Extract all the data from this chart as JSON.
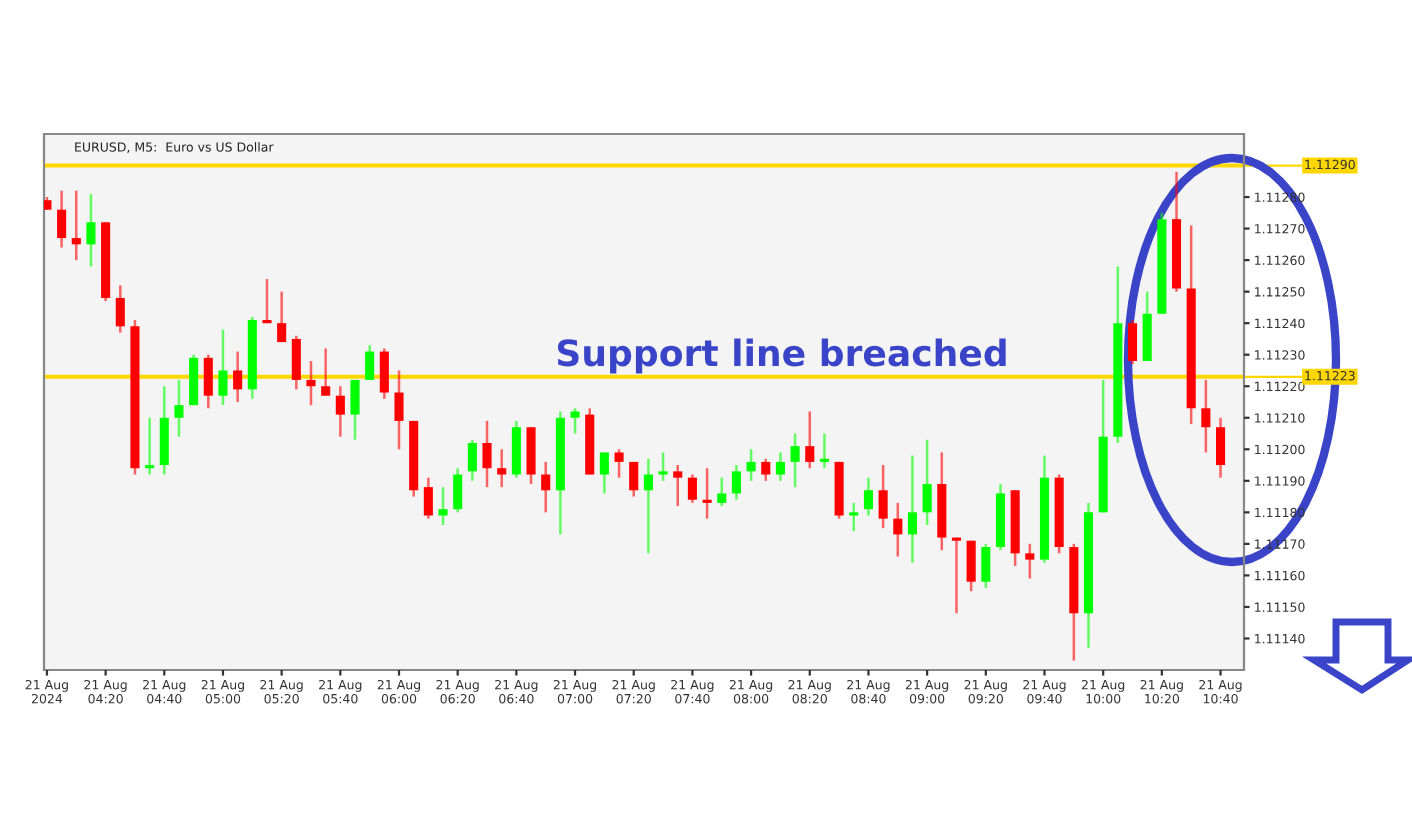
{
  "chart_data": {
    "type": "candlestick",
    "title": "EURUSD, M5:  Euro vs US Dollar",
    "annotations": [
      "Support line breached"
    ],
    "x": [
      "2024-08-21T04:00",
      "2024-08-21T04:05",
      "2024-08-21T04:10",
      "2024-08-21T04:15",
      "2024-08-21T04:20",
      "2024-08-21T04:25",
      "2024-08-21T04:30",
      "2024-08-21T04:35",
      "2024-08-21T04:40",
      "2024-08-21T04:45",
      "2024-08-21T04:50",
      "2024-08-21T04:55",
      "2024-08-21T05:00",
      "2024-08-21T05:05",
      "2024-08-21T05:10",
      "2024-08-21T05:15",
      "2024-08-21T05:20",
      "2024-08-21T05:25",
      "2024-08-21T05:30",
      "2024-08-21T05:35",
      "2024-08-21T05:40",
      "2024-08-21T05:45",
      "2024-08-21T05:50",
      "2024-08-21T05:55",
      "2024-08-21T06:00",
      "2024-08-21T06:05",
      "2024-08-21T06:10",
      "2024-08-21T06:15",
      "2024-08-21T06:20",
      "2024-08-21T06:25",
      "2024-08-21T06:30",
      "2024-08-21T06:35",
      "2024-08-21T06:40",
      "2024-08-21T06:45",
      "2024-08-21T06:50",
      "2024-08-21T06:55",
      "2024-08-21T07:00",
      "2024-08-21T07:05",
      "2024-08-21T07:10",
      "2024-08-21T07:15",
      "2024-08-21T07:20",
      "2024-08-21T07:25",
      "2024-08-21T07:30",
      "2024-08-21T07:35",
      "2024-08-21T07:40",
      "2024-08-21T07:45",
      "2024-08-21T07:50",
      "2024-08-21T07:55",
      "2024-08-21T08:00",
      "2024-08-21T08:05",
      "2024-08-21T08:10",
      "2024-08-21T08:15",
      "2024-08-21T08:20",
      "2024-08-21T08:25",
      "2024-08-21T08:30",
      "2024-08-21T08:35",
      "2024-08-21T08:40",
      "2024-08-21T08:45",
      "2024-08-21T08:50",
      "2024-08-21T08:55",
      "2024-08-21T09:00",
      "2024-08-21T09:05",
      "2024-08-21T09:10",
      "2024-08-21T09:15",
      "2024-08-21T09:20",
      "2024-08-21T09:25",
      "2024-08-21T09:30",
      "2024-08-21T09:35",
      "2024-08-21T09:40",
      "2024-08-21T09:45",
      "2024-08-21T09:50",
      "2024-08-21T09:55",
      "2024-08-21T10:00",
      "2024-08-21T10:05",
      "2024-08-21T10:10",
      "2024-08-21T10:15",
      "2024-08-21T10:20",
      "2024-08-21T10:25",
      "2024-08-21T10:30",
      "2024-08-21T10:35",
      "2024-08-21T10:40"
    ],
    "ohlc": [
      [
        1.11279,
        1.1128,
        1.11276,
        1.11276
      ],
      [
        1.11276,
        1.11282,
        1.11264,
        1.11267
      ],
      [
        1.11267,
        1.11282,
        1.1126,
        1.11265
      ],
      [
        1.11265,
        1.11281,
        1.11258,
        1.11272
      ],
      [
        1.11272,
        1.11272,
        1.11247,
        1.11248
      ],
      [
        1.11248,
        1.11252,
        1.11237,
        1.11239
      ],
      [
        1.11239,
        1.11241,
        1.11192,
        1.11194
      ],
      [
        1.11194,
        1.1121,
        1.11192,
        1.11195
      ],
      [
        1.11195,
        1.1122,
        1.11192,
        1.1121
      ],
      [
        1.1121,
        1.11222,
        1.11204,
        1.11214
      ],
      [
        1.11214,
        1.1123,
        1.11214,
        1.11229
      ],
      [
        1.11229,
        1.1123,
        1.11213,
        1.11217
      ],
      [
        1.11217,
        1.11238,
        1.11214,
        1.11225
      ],
      [
        1.11225,
        1.11231,
        1.11215,
        1.11219
      ],
      [
        1.11219,
        1.11242,
        1.11216,
        1.11241
      ],
      [
        1.11241,
        1.11254,
        1.1124,
        1.1124
      ],
      [
        1.1124,
        1.1125,
        1.11234,
        1.11234
      ],
      [
        1.11235,
        1.11236,
        1.11219,
        1.11222
      ],
      [
        1.11222,
        1.11228,
        1.11214,
        1.1122
      ],
      [
        1.1122,
        1.11232,
        1.11217,
        1.11217
      ],
      [
        1.11217,
        1.1122,
        1.11204,
        1.11211
      ],
      [
        1.11211,
        1.11222,
        1.11203,
        1.11222
      ],
      [
        1.11222,
        1.11233,
        1.11222,
        1.11231
      ],
      [
        1.11231,
        1.11232,
        1.11216,
        1.11218
      ],
      [
        1.11218,
        1.11225,
        1.112,
        1.11209
      ],
      [
        1.11209,
        1.11209,
        1.11185,
        1.11187
      ],
      [
        1.11188,
        1.11191,
        1.11178,
        1.11179
      ],
      [
        1.11179,
        1.11188,
        1.11176,
        1.11181
      ],
      [
        1.11181,
        1.11194,
        1.1118,
        1.11192
      ],
      [
        1.11193,
        1.11203,
        1.1119,
        1.11202
      ],
      [
        1.11202,
        1.11209,
        1.11188,
        1.11194
      ],
      [
        1.11194,
        1.112,
        1.11188,
        1.11192
      ],
      [
        1.11192,
        1.11209,
        1.11191,
        1.11207
      ],
      [
        1.11207,
        1.11207,
        1.11189,
        1.11192
      ],
      [
        1.11192,
        1.11196,
        1.1118,
        1.11187
      ],
      [
        1.11187,
        1.11212,
        1.11173,
        1.1121
      ],
      [
        1.1121,
        1.11213,
        1.11205,
        1.11212
      ],
      [
        1.11211,
        1.11213,
        1.11192,
        1.11192
      ],
      [
        1.11192,
        1.11199,
        1.11186,
        1.11199
      ],
      [
        1.11199,
        1.112,
        1.11191,
        1.11196
      ],
      [
        1.11196,
        1.11196,
        1.11185,
        1.11187
      ],
      [
        1.11187,
        1.11197,
        1.11167,
        1.11192
      ],
      [
        1.11192,
        1.11199,
        1.1119,
        1.11193
      ],
      [
        1.11193,
        1.11195,
        1.11182,
        1.11191
      ],
      [
        1.11191,
        1.11192,
        1.11183,
        1.11184
      ],
      [
        1.11184,
        1.11194,
        1.11178,
        1.11183
      ],
      [
        1.11183,
        1.11191,
        1.11182,
        1.11186
      ],
      [
        1.11186,
        1.11195,
        1.11184,
        1.11193
      ],
      [
        1.11193,
        1.112,
        1.1119,
        1.11196
      ],
      [
        1.11196,
        1.11197,
        1.1119,
        1.11192
      ],
      [
        1.11192,
        1.11199,
        1.1119,
        1.11196
      ],
      [
        1.11196,
        1.11205,
        1.11188,
        1.11201
      ],
      [
        1.11201,
        1.11212,
        1.11194,
        1.11196
      ],
      [
        1.11196,
        1.11205,
        1.11194,
        1.11197
      ],
      [
        1.11196,
        1.11196,
        1.11178,
        1.11179
      ],
      [
        1.11179,
        1.11183,
        1.11174,
        1.1118
      ],
      [
        1.11181,
        1.11191,
        1.11179,
        1.11187
      ],
      [
        1.11187,
        1.11195,
        1.11175,
        1.11178
      ],
      [
        1.11178,
        1.11183,
        1.11166,
        1.11173
      ],
      [
        1.11173,
        1.11198,
        1.11164,
        1.1118
      ],
      [
        1.1118,
        1.11203,
        1.11176,
        1.11189
      ],
      [
        1.11189,
        1.11199,
        1.11168,
        1.11172
      ],
      [
        1.11172,
        1.11172,
        1.11148,
        1.11171
      ],
      [
        1.11171,
        1.11171,
        1.11155,
        1.11158
      ],
      [
        1.11158,
        1.1117,
        1.11156,
        1.11169
      ],
      [
        1.11169,
        1.11189,
        1.11168,
        1.11186
      ],
      [
        1.11187,
        1.11187,
        1.11163,
        1.11167
      ],
      [
        1.11167,
        1.1117,
        1.11159,
        1.11165
      ],
      [
        1.11165,
        1.11198,
        1.11164,
        1.11191
      ],
      [
        1.11191,
        1.11192,
        1.11167,
        1.11169
      ],
      [
        1.11169,
        1.1117,
        1.11133,
        1.11148
      ],
      [
        1.11148,
        1.11183,
        1.11137,
        1.1118
      ],
      [
        1.1118,
        1.11222,
        1.1118,
        1.11204
      ],
      [
        1.11204,
        1.11258,
        1.11202,
        1.1124
      ],
      [
        1.1124,
        1.11241,
        1.11227,
        1.11228
      ],
      [
        1.11228,
        1.1125,
        1.11228,
        1.11243
      ],
      [
        1.11243,
        1.11275,
        1.11243,
        1.11273
      ],
      [
        1.11273,
        1.11288,
        1.1125,
        1.11251
      ],
      [
        1.11251,
        1.11271,
        1.11208,
        1.11213
      ],
      [
        1.11213,
        1.11222,
        1.11199,
        1.11207
      ],
      [
        1.11207,
        1.1121,
        1.11191,
        1.11195
      ]
    ],
    "colors": [
      "#ff0000",
      "#ff0000",
      "#ff0000",
      "#00ff00",
      "#ff0000",
      "#ff0000",
      "#ff0000",
      "#00ff00",
      "#00ff00",
      "#00ff00",
      "#00ff00",
      "#ff0000",
      "#00ff00",
      "#ff0000",
      "#00ff00",
      "#ff0000",
      "#ff0000",
      "#ff0000",
      "#ff0000",
      "#ff0000",
      "#ff0000",
      "#00ff00",
      "#00ff00",
      "#ff0000",
      "#ff0000",
      "#ff0000",
      "#ff0000",
      "#00ff00",
      "#00ff00",
      "#00ff00",
      "#ff0000",
      "#ff0000",
      "#00ff00",
      "#ff0000",
      "#ff0000",
      "#00ff00",
      "#00ff00",
      "#ff0000",
      "#00ff00",
      "#ff0000",
      "#ff0000",
      "#00ff00",
      "#00ff00",
      "#ff0000",
      "#ff0000",
      "#ff0000",
      "#00ff00",
      "#00ff00",
      "#00ff00",
      "#ff0000",
      "#00ff00",
      "#00ff00",
      "#ff0000",
      "#00ff00",
      "#ff0000",
      "#00ff00",
      "#00ff00",
      "#ff0000",
      "#ff0000",
      "#00ff00",
      "#00ff00",
      "#ff0000",
      "#ff0000",
      "#ff0000",
      "#00ff00",
      "#00ff00",
      "#ff0000",
      "#ff0000",
      "#00ff00",
      "#ff0000",
      "#ff0000",
      "#00ff00",
      "#00ff00",
      "#00ff00",
      "#ff0000",
      "#00ff00",
      "#00ff00",
      "#ff0000",
      "#ff0000",
      "#ff0000",
      "#ff0000"
    ],
    "xlim": [
      "2024-08-21T03:59",
      "2024-08-21T10:48"
    ],
    "xticks": [
      {
        "value": "2024-08-21T04:00",
        "label": "21 Aug 2024"
      },
      {
        "value": "2024-08-21T04:20",
        "label": "21 Aug 04:20"
      },
      {
        "value": "2024-08-21T04:40",
        "label": "21 Aug 04:40"
      },
      {
        "value": "2024-08-21T05:00",
        "label": "21 Aug 05:00"
      },
      {
        "value": "2024-08-21T05:20",
        "label": "21 Aug 05:20"
      },
      {
        "value": "2024-08-21T05:40",
        "label": "21 Aug 05:40"
      },
      {
        "value": "2024-08-21T06:00",
        "label": "21 Aug 06:00"
      },
      {
        "value": "2024-08-21T06:20",
        "label": "21 Aug 06:20"
      },
      {
        "value": "2024-08-21T06:40",
        "label": "21 Aug 06:40"
      },
      {
        "value": "2024-08-21T07:00",
        "label": "21 Aug 07:00"
      },
      {
        "value": "2024-08-21T07:20",
        "label": "21 Aug 07:20"
      },
      {
        "value": "2024-08-21T07:40",
        "label": "21 Aug 07:40"
      },
      {
        "value": "2024-08-21T08:00",
        "label": "21 Aug 08:00"
      },
      {
        "value": "2024-08-21T08:20",
        "label": "21 Aug 08:20"
      },
      {
        "value": "2024-08-21T08:40",
        "label": "21 Aug 08:40"
      },
      {
        "value": "2024-08-21T09:00",
        "label": "21 Aug 09:00"
      },
      {
        "value": "2024-08-21T09:20",
        "label": "21 Aug 09:20"
      },
      {
        "value": "2024-08-21T09:40",
        "label": "21 Aug 09:40"
      },
      {
        "value": "2024-08-21T10:00",
        "label": "21 Aug 10:00"
      },
      {
        "value": "2024-08-21T10:20",
        "label": "21 Aug 10:20"
      },
      {
        "value": "2024-08-21T10:40",
        "label": "21 Aug 10:40"
      }
    ],
    "ylim": [
      1.1113,
      1.113
    ],
    "yticks": [
      {
        "value": 1.1114,
        "label": "1.11140"
      },
      {
        "value": 1.1115,
        "label": "1.11150"
      },
      {
        "value": 1.1116,
        "label": "1.11160"
      },
      {
        "value": 1.1117,
        "label": "1.11170"
      },
      {
        "value": 1.1118,
        "label": "1.11180"
      },
      {
        "value": 1.1119,
        "label": "1.11190"
      },
      {
        "value": 1.112,
        "label": "1.11200"
      },
      {
        "value": 1.1121,
        "label": "1.11210"
      },
      {
        "value": 1.1122,
        "label": "1.11220"
      },
      {
        "value": 1.1123,
        "label": "1.11230"
      },
      {
        "value": 1.1124,
        "label": "1.11240"
      },
      {
        "value": 1.1125,
        "label": "1.11250"
      },
      {
        "value": 1.1126,
        "label": "1.11260"
      },
      {
        "value": 1.1127,
        "label": "1.11270"
      },
      {
        "value": 1.1128,
        "label": "1.11280"
      }
    ],
    "ref_lines": [
      {
        "axis": "y",
        "value": 1.1129,
        "label": "1.11290",
        "color": "#ffd700"
      },
      {
        "axis": "y",
        "value": 1.11223,
        "label": "1.11223",
        "color": "#ffd700"
      }
    ],
    "grid": false
  }
}
